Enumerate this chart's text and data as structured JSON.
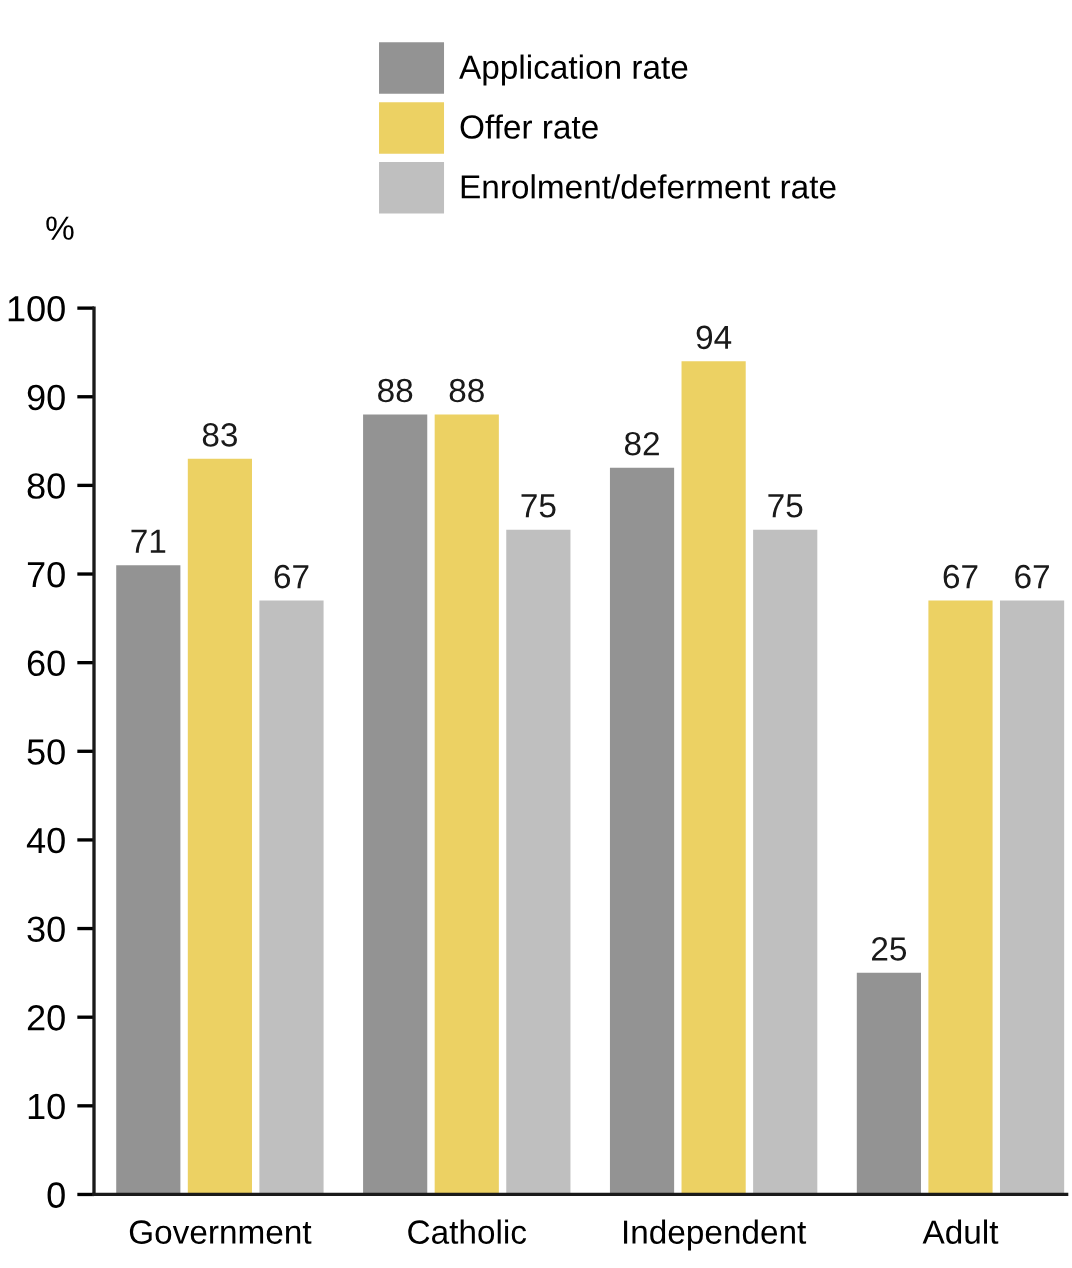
{
  "chart_data": {
    "type": "bar",
    "ylabel": "%",
    "categories": [
      "Government",
      "Catholic",
      "Independent",
      "Adult"
    ],
    "series": [
      {
        "name": "Application rate",
        "color": "#939393",
        "values": [
          71,
          88,
          82,
          25
        ]
      },
      {
        "name": "Offer rate",
        "color": "#ecd163",
        "values": [
          83,
          88,
          94,
          67
        ]
      },
      {
        "name": "Enrolment/deferment rate",
        "color": "#bfbfbf",
        "values": [
          67,
          75,
          75,
          67
        ]
      }
    ],
    "ylim": [
      0,
      100
    ],
    "yticks": [
      0,
      10,
      20,
      30,
      40,
      50,
      60,
      70,
      80,
      90,
      100
    ],
    "data_labels": true,
    "legend": "top"
  }
}
